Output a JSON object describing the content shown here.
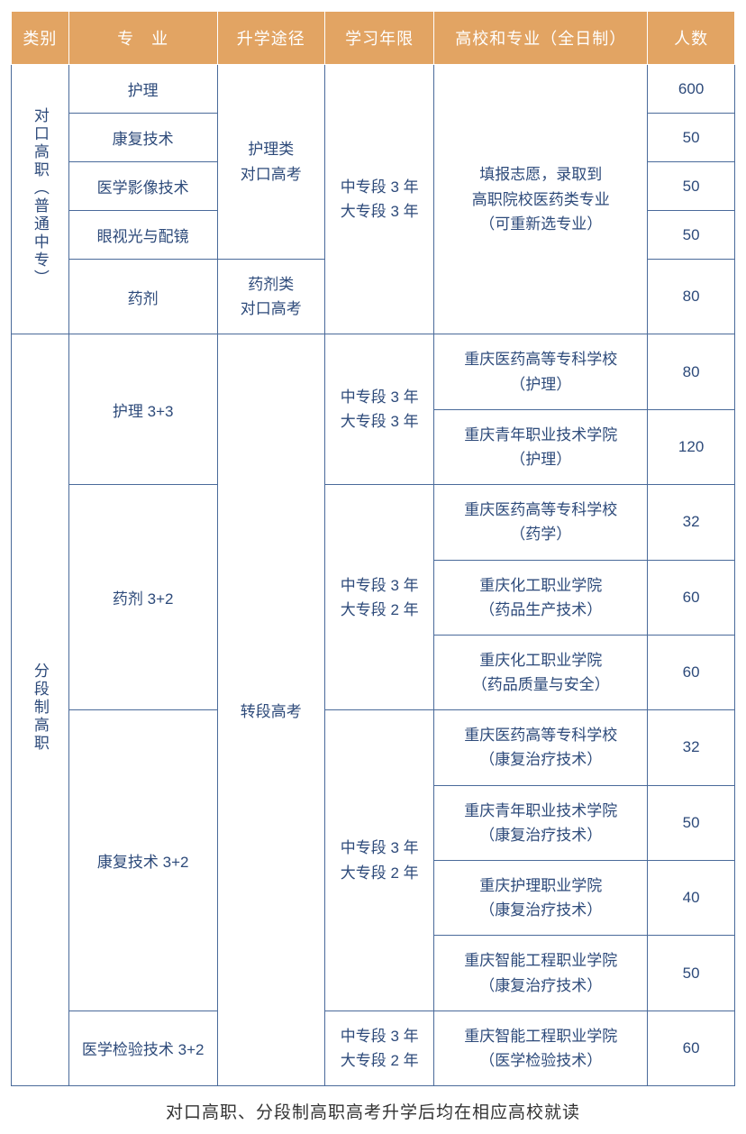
{
  "headers": {
    "category": "类别",
    "major": "专　业",
    "path": "升学途径",
    "duration": "学习年限",
    "college": "高校和专业（全日制）",
    "count": "人数"
  },
  "section1": {
    "category": "对口高职（普通中专）",
    "path_nursing_l1": "护理类",
    "path_nursing_l2": "对口高考",
    "path_pharm_l1": "药剂类",
    "path_pharm_l2": "对口高考",
    "duration_l1": "中专段 3 年",
    "duration_l2": "大专段 3 年",
    "college_l1": "填报志愿，录取到",
    "college_l2": "高职院校医药类专业",
    "college_l3": "（可重新选专业）",
    "majors": {
      "nursing": "护理",
      "rehab": "康复技术",
      "imaging": "医学影像技术",
      "optometry": "眼视光与配镜",
      "pharmacy": "药剂"
    },
    "counts": {
      "nursing": "600",
      "rehab": "50",
      "imaging": "50",
      "optometry": "50",
      "pharmacy": "80"
    }
  },
  "section2": {
    "category": "分段制高职",
    "path": "转段高考",
    "duration33_l1": "中专段 3 年",
    "duration33_l2": "大专段 3 年",
    "duration32_l1": "中专段 3 年",
    "duration32_l2": "大专段 2 年",
    "majors": {
      "nursing33": "护理 3+3",
      "pharm32": "药剂 3+2",
      "rehab32": "康复技术 3+2",
      "lab32": "医学检验技术 3+2"
    },
    "colleges": {
      "r1_l1": "重庆医药高等专科学校",
      "r1_l2": "（护理）",
      "r2_l1": "重庆青年职业技术学院",
      "r2_l2": "（护理）",
      "r3_l1": "重庆医药高等专科学校",
      "r3_l2": "（药学）",
      "r4_l1": "重庆化工职业学院",
      "r4_l2": "（药品生产技术）",
      "r5_l1": "重庆化工职业学院",
      "r5_l2": "（药品质量与安全）",
      "r6_l1": "重庆医药高等专科学校",
      "r6_l2": "（康复治疗技术）",
      "r7_l1": "重庆青年职业技术学院",
      "r7_l2": "（康复治疗技术）",
      "r8_l1": "重庆护理职业学院",
      "r8_l2": "（康复治疗技术）",
      "r9_l1": "重庆智能工程职业学院",
      "r9_l2": "（康复治疗技术）",
      "r10_l1": "重庆智能工程职业学院",
      "r10_l2": "（医学检验技术）"
    },
    "counts": {
      "r1": "80",
      "r2": "120",
      "r3": "32",
      "r4": "60",
      "r5": "60",
      "r6": "32",
      "r7": "50",
      "r8": "40",
      "r9": "50",
      "r10": "60"
    }
  },
  "footnote": "对口高职、分段制高职高考升学后均在相应高校就读"
}
